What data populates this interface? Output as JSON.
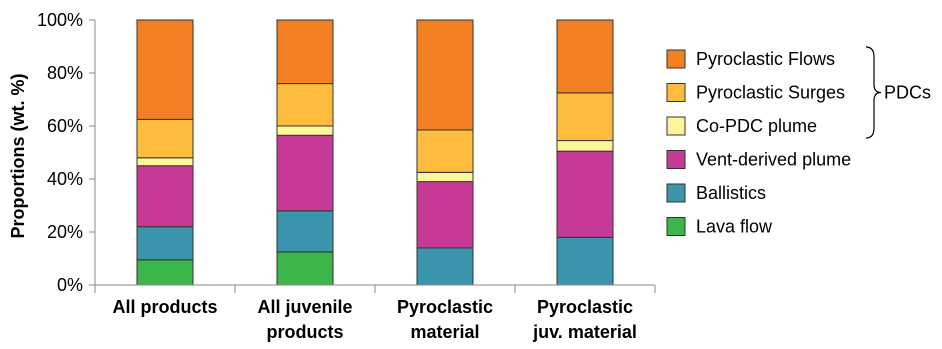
{
  "chart_data": {
    "type": "bar",
    "stacked": true,
    "percent": true,
    "title": "",
    "xlabel": "",
    "ylabel": "Proportions (wt. %)",
    "ylim": [
      0,
      100
    ],
    "y_ticks": [
      "0%",
      "20%",
      "40%",
      "60%",
      "80%",
      "100%"
    ],
    "categories": [
      [
        "All products"
      ],
      [
        "All juvenile",
        "products"
      ],
      [
        "Pyroclastic",
        "material"
      ],
      [
        "Pyroclastic",
        "juv. material"
      ]
    ],
    "series": [
      {
        "name": "Lava flow",
        "color": "#3cb54a",
        "values": [
          9.5,
          12.5,
          0,
          0
        ]
      },
      {
        "name": "Ballistics",
        "color": "#3a95ad",
        "values": [
          12.5,
          15.5,
          14,
          18
        ]
      },
      {
        "name": "Vent-derived plume",
        "color": "#c83a98",
        "values": [
          23,
          28.5,
          25,
          32.5
        ]
      },
      {
        "name": "Co-PDC plume",
        "color": "#fdf59a",
        "values": [
          3,
          3.5,
          3.5,
          4
        ]
      },
      {
        "name": "Pyroclastic Surges",
        "color": "#fdbc3e",
        "values": [
          14.5,
          16,
          16,
          18
        ]
      },
      {
        "name": "Pyroclastic Flows",
        "color": "#f27f22",
        "values": [
          37.5,
          24,
          41.5,
          27.5
        ]
      }
    ],
    "legend": {
      "placement": "right",
      "order": [
        "Pyroclastic Flows",
        "Pyroclastic Surges",
        "Co-PDC plume",
        "Vent-derived plume",
        "Ballistics",
        "Lava flow"
      ],
      "group_label": "PDCs",
      "group_members": [
        "Pyroclastic Flows",
        "Pyroclastic Surges",
        "Co-PDC plume"
      ]
    },
    "grid": false
  }
}
